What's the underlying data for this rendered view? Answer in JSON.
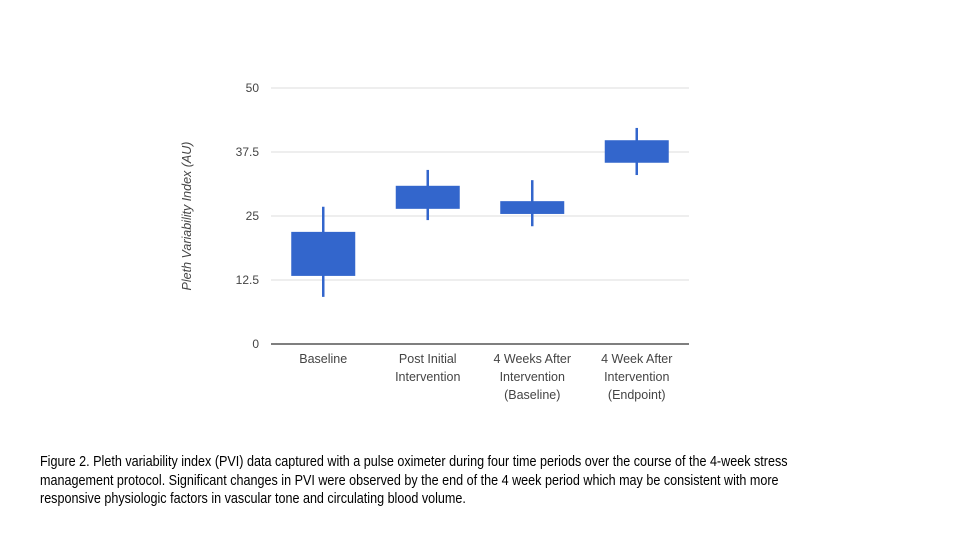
{
  "chart_data": {
    "type": "candlestick",
    "title": "",
    "xlabel": "",
    "ylabel": "Pleth Variability Index (AU)",
    "ylim": [
      0,
      50
    ],
    "yticks": [
      "0",
      "12.5",
      "25",
      "37.5",
      "50"
    ],
    "grid": true,
    "legend": "none",
    "color": "#3366cc",
    "categories": [
      [
        "Baseline"
      ],
      [
        "Post Initial",
        "Intervention"
      ],
      [
        "4 Weeks After",
        "Intervention",
        "(Baseline)"
      ],
      [
        "4 Week After",
        "Intervention",
        "(Endpoint)"
      ]
    ],
    "series": [
      {
        "name": "PVI",
        "low": [
          9.2,
          24.2,
          23.0,
          33.0
        ],
        "box_bottom": [
          13.3,
          26.4,
          25.4,
          35.4
        ],
        "box_top": [
          21.9,
          30.9,
          27.9,
          39.8
        ],
        "high": [
          26.8,
          34.0,
          32.0,
          42.2
        ]
      }
    ]
  },
  "caption": [
    "Figure 2. Pleth variability index (PVI) data captured with a pulse oximeter during four time periods over the course of the 4-week stress",
    "management protocol. Significant changes in PVI were observed by the end of the 4 week period which may be consistent with more",
    "responsive physiologic factors in vascular tone and circulating blood volume."
  ]
}
